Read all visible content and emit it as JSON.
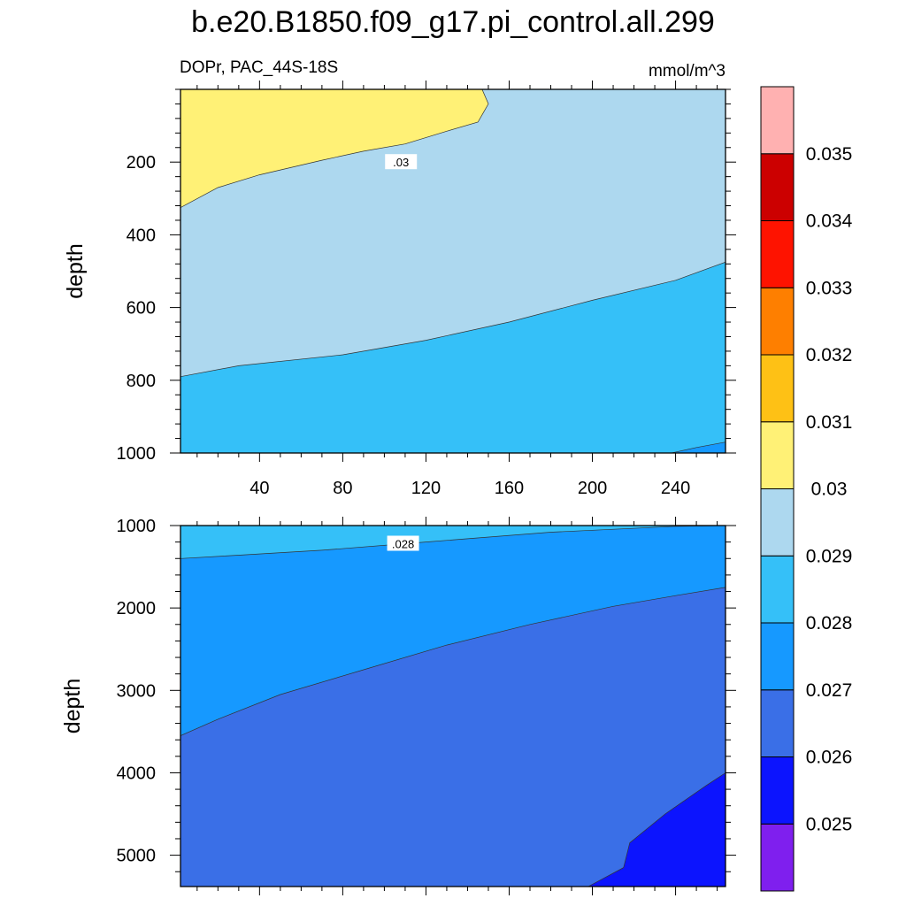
{
  "chart_data": {
    "type": "contour",
    "title": "b.e20.B1850.f09_g17.pi_control.all.299",
    "variable": "DOPr, PAC_44S-18S",
    "units": "mmol/m^3",
    "xlabel": "",
    "ylabel": "depth",
    "x_range": [
      2,
      264
    ],
    "x_ticks": [
      40,
      80,
      120,
      160,
      200,
      240
    ],
    "x_tick_labels": [
      "40",
      "80",
      "120",
      "160",
      "200",
      "240"
    ],
    "panels": [
      {
        "name": "upper",
        "y_range": [
          0,
          1000
        ],
        "y_reversed": true,
        "y_ticks": [
          200,
          400,
          600,
          800,
          1000
        ],
        "y_tick_labels": [
          "200",
          "400",
          "600",
          "800",
          "1000"
        ],
        "regions": [
          {
            "level": "0.029-0.030",
            "color": "#add8ef",
            "poly": [
              [
                2,
                0
              ],
              [
                264,
                0
              ],
              [
                264,
                1000
              ],
              [
                2,
                1000
              ]
            ]
          },
          {
            "level": "0.030-0.031",
            "color": "#fff176",
            "poly": [
              [
                2,
                0
              ],
              [
                147,
                0
              ],
              [
                150,
                40
              ],
              [
                145,
                90
              ],
              [
                130,
                115
              ],
              [
                110,
                150
              ],
              [
                90,
                170
              ],
              [
                70,
                195
              ],
              [
                40,
                235
              ],
              [
                20,
                270
              ],
              [
                2,
                325
              ]
            ]
          },
          {
            "level": "0.028-0.029",
            "color": "#35c0f8",
            "poly": [
              [
                2,
                790
              ],
              [
                30,
                760
              ],
              [
                80,
                730
              ],
              [
                120,
                690
              ],
              [
                160,
                640
              ],
              [
                200,
                580
              ],
              [
                240,
                525
              ],
              [
                264,
                475
              ],
              [
                264,
                1000
              ],
              [
                2,
                1000
              ]
            ]
          },
          {
            "level": "0.027-0.028",
            "color": "#1699ff",
            "poly": [
              [
                238,
                1000
              ],
              [
                250,
                985
              ],
              [
                264,
                970
              ],
              [
                264,
                1000
              ]
            ]
          }
        ],
        "labels": [
          {
            "text": ".03",
            "x": 108,
            "y": 200
          }
        ]
      },
      {
        "name": "lower",
        "y_range": [
          1000,
          5380
        ],
        "y_reversed": true,
        "y_ticks": [
          1000,
          2000,
          3000,
          4000,
          5000
        ],
        "y_tick_labels": [
          "1000",
          "2000",
          "3000",
          "4000",
          "5000"
        ],
        "regions": [
          {
            "level": "0.027-0.028",
            "color": "#1699ff",
            "poly": [
              [
                2,
                1000
              ],
              [
                264,
                1000
              ],
              [
                264,
                5380
              ],
              [
                2,
                5380
              ]
            ]
          },
          {
            "level": "0.028-0.029",
            "color": "#35c0f8",
            "poly": [
              [
                2,
                1000
              ],
              [
                264,
                1000
              ],
              [
                240,
                1010
              ],
              [
                180,
                1080
              ],
              [
                120,
                1200
              ],
              [
                70,
                1300
              ],
              [
                30,
                1360
              ],
              [
                2,
                1400
              ]
            ]
          },
          {
            "level": "0.026-0.027",
            "color": "#3a6fe7",
            "poly": [
              [
                2,
                3550
              ],
              [
                20,
                3350
              ],
              [
                50,
                3050
              ],
              [
                90,
                2750
              ],
              [
                130,
                2450
              ],
              [
                170,
                2200
              ],
              [
                210,
                1980
              ],
              [
                240,
                1850
              ],
              [
                264,
                1750
              ],
              [
                264,
                5380
              ],
              [
                2,
                5380
              ]
            ]
          },
          {
            "level": "0.025-0.026",
            "color": "#0c14fe",
            "poly": [
              [
                198,
                5380
              ],
              [
                215,
                5150
              ],
              [
                218,
                4850
              ],
              [
                235,
                4500
              ],
              [
                255,
                4150
              ],
              [
                264,
                4000
              ],
              [
                264,
                5380
              ]
            ]
          }
        ],
        "labels": [
          {
            "text": ".028",
            "x": 109,
            "y": 1220
          }
        ]
      }
    ],
    "colorbar": {
      "bins": [
        {
          "color": "#7f1fee"
        },
        {
          "color": "#0c14fe"
        },
        {
          "color": "#3a6fe7"
        },
        {
          "color": "#1699ff"
        },
        {
          "color": "#35c0f8"
        },
        {
          "color": "#add8ef"
        },
        {
          "color": "#fff176"
        },
        {
          "color": "#fec115"
        },
        {
          "color": "#fe7f00"
        },
        {
          "color": "#fe1300"
        },
        {
          "color": "#cc0000"
        },
        {
          "color": "#ffb1b1"
        }
      ],
      "labels": [
        "0.025",
        "0.026",
        "0.027",
        "0.028",
        "0.029",
        "0.03",
        "0.031",
        "0.032",
        "0.033",
        "0.034",
        "0.035"
      ]
    }
  }
}
